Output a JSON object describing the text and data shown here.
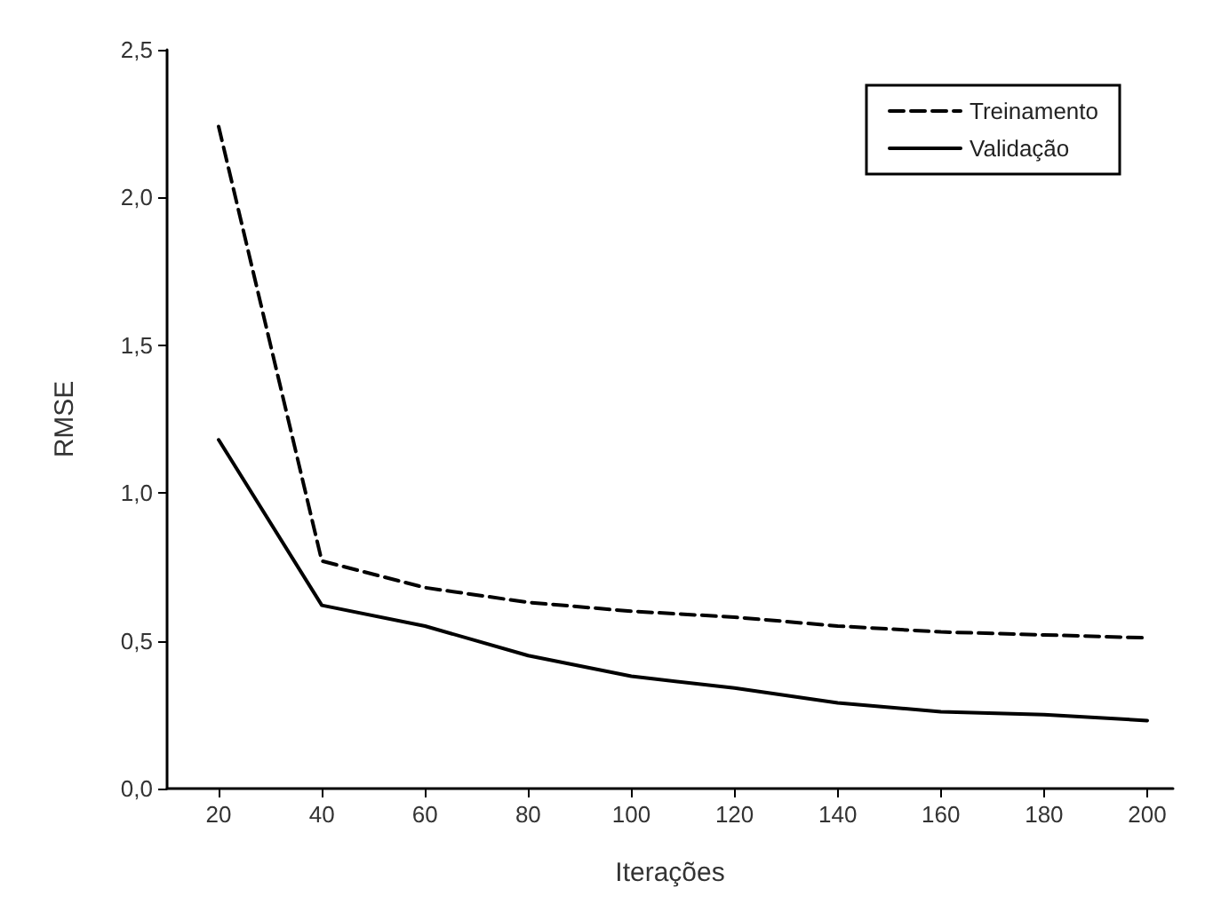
{
  "chart_data": {
    "type": "line",
    "xlabel": "Iterações",
    "ylabel": "RMSE",
    "x": [
      20,
      40,
      60,
      80,
      100,
      120,
      140,
      160,
      180,
      200
    ],
    "series": [
      {
        "name": "Treinamento",
        "color": "#000000",
        "line_style": "dashed",
        "values": [
          2.24,
          0.77,
          0.68,
          0.63,
          0.6,
          0.58,
          0.55,
          0.53,
          0.52,
          0.51
        ]
      },
      {
        "name": "Validação",
        "color": "#000000",
        "line_style": "solid",
        "values": [
          1.18,
          0.62,
          0.55,
          0.45,
          0.38,
          0.34,
          0.29,
          0.26,
          0.25,
          0.23
        ]
      }
    ],
    "xlim": [
      10,
      205
    ],
    "xticks": [
      20,
      40,
      60,
      80,
      100,
      120,
      140,
      160,
      180,
      200
    ],
    "ylim": [
      0,
      2.5
    ],
    "yticks": [
      {
        "value": 0,
        "label": "0,0"
      },
      {
        "value": 0.5,
        "label": "0,5"
      },
      {
        "value": 1,
        "label": "1,0"
      },
      {
        "value": 1.5,
        "label": "1,5"
      },
      {
        "value": 2,
        "label": "2,0"
      },
      {
        "value": 2.5,
        "label": "2,5"
      }
    ],
    "legend": "top right",
    "grid": false,
    "marker": "none"
  }
}
